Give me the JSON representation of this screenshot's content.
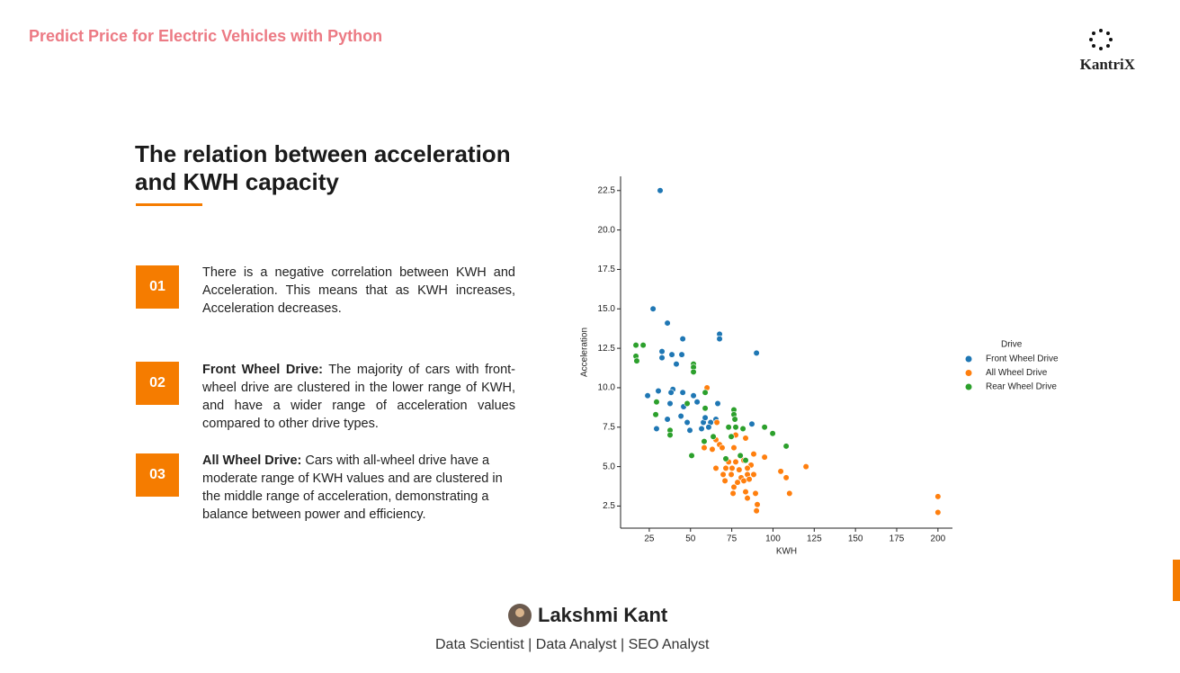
{
  "header": {
    "title": "Predict Price for Electric Vehicles with Python",
    "logo": "KantriX"
  },
  "heading": "The relation between acceleration and KWH capacity",
  "points": [
    {
      "number": "01",
      "text": "There is a negative correlation between KWH and Acceleration. This means that as KWH increases, Acceleration decreases."
    },
    {
      "number": "02",
      "lead": "Front Wheel Drive:",
      "text": "The majority of cars with front-wheel drive are clustered in the lower range of KWH, and have a wider range of acceleration values compared to other drive types."
    },
    {
      "number": "03",
      "lead": "All Wheel Drive:",
      "text": "Cars with all-wheel drive have a moderate range of KWH values and are clustered in the middle range of acceleration, demonstrating a balance between power and efficiency."
    }
  ],
  "footer": {
    "name": "Lakshmi Kant",
    "role": "Data Scientist | Data Analyst | SEO Analyst"
  },
  "chart_data": {
    "type": "scatter",
    "xlabel": "KWH",
    "ylabel": "Acceleration",
    "legend_title": "Drive",
    "legend": "right",
    "xlim": [
      7.6,
      208.8
    ],
    "ylim": [
      1.1,
      23.4
    ],
    "xticks": [
      25,
      50,
      75,
      100,
      125,
      150,
      175,
      200
    ],
    "yticks": [
      2.5,
      {
        "value": 5,
        "label": "5.0"
      },
      7.5,
      {
        "value": 10,
        "label": "10.0"
      },
      12.5,
      {
        "value": 15,
        "label": "15.0"
      },
      17.5,
      {
        "value": 20,
        "label": "20.0"
      },
      22.5
    ],
    "series": [
      {
        "name": "Front Wheel Drive",
        "color": "#1f77b4",
        "x": [
          31.6,
          27.3,
          36,
          32.7,
          32.7,
          38.7,
          41.4,
          44.7,
          45.3,
          67.6,
          67.6,
          90,
          24,
          30.5,
          39.3,
          38.2,
          45.3,
          51.8,
          37.6,
          45.8,
          54,
          66.5,
          44.2,
          36,
          48,
          29.4,
          57.8,
          58.9,
          62.2,
          65.4,
          56.7,
          61,
          49.6,
          87.2
        ],
        "values": [
          22.5,
          15.0,
          14.1,
          12.3,
          11.9,
          12.1,
          11.5,
          12.1,
          13.1,
          13.4,
          13.1,
          12.2,
          9.5,
          9.8,
          9.9,
          9.7,
          9.7,
          9.5,
          9.0,
          8.8,
          9.1,
          9.0,
          8.2,
          8.0,
          7.8,
          7.4,
          7.8,
          8.1,
          7.8,
          8.0,
          7.4,
          7.5,
          7.3,
          7.7
        ]
      },
      {
        "name": "All Wheel Drive",
        "color": "#ff7f0e",
        "x": [
          60,
          66,
          65.4,
          67.6,
          58.3,
          63.2,
          69.2,
          76.3,
          77.4,
          83.4,
          88.3,
          94.9,
          73.1,
          77.4,
          82.3,
          86.7,
          71.4,
          75.2,
          79.5,
          65.4,
          84.5,
          69.8,
          74.7,
          80.7,
          84.5,
          88.3,
          104.7,
          108,
          120,
          70.9,
          78.5,
          82.3,
          85.6,
          76.3,
          83.4,
          89.4,
          75.8,
          84.5,
          110,
          90.5,
          90,
          200,
          200
        ],
        "values": [
          10,
          7.8,
          6.7,
          6.4,
          6.2,
          6.1,
          6.2,
          6.2,
          7.0,
          6.8,
          5.8,
          5.6,
          5.3,
          5.3,
          5.4,
          5.1,
          4.9,
          4.9,
          4.8,
          4.9,
          4.9,
          4.5,
          4.5,
          4.3,
          4.5,
          4.5,
          4.7,
          4.3,
          5.0,
          4.1,
          4.0,
          4.1,
          4.2,
          3.7,
          3.4,
          3.3,
          3.3,
          3.0,
          3.3,
          2.6,
          2.2,
          3.1,
          2.1
        ]
      },
      {
        "name": "Rear Wheel Drive",
        "color": "#2ca02c",
        "x": [
          16.9,
          21.3,
          16.9,
          17.4,
          51.8,
          51.8,
          51.8,
          58.9,
          29.4,
          48,
          28.9,
          58.9,
          76.3,
          76.3,
          76.9,
          77.4,
          73.1,
          81.8,
          94.9,
          37.6,
          37.6,
          63.8,
          74.7,
          99.8,
          108,
          58.3,
          50.7,
          80.2,
          83.4,
          71.4
        ],
        "values": [
          12.7,
          12.7,
          12.0,
          11.7,
          11.5,
          11.3,
          11.0,
          9.7,
          9.1,
          9.0,
          8.3,
          8.7,
          8.6,
          8.3,
          8.0,
          7.5,
          7.5,
          7.4,
          7.5,
          7.3,
          7.0,
          6.9,
          6.9,
          7.1,
          6.3,
          6.6,
          5.7,
          5.7,
          5.4,
          5.5
        ]
      }
    ]
  }
}
